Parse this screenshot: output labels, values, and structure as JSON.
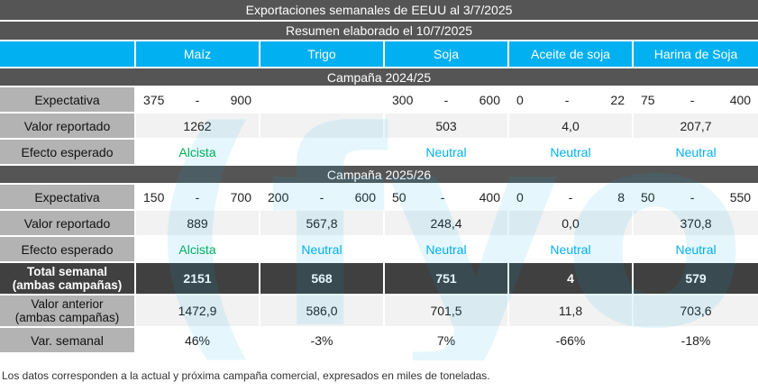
{
  "title": "Exportaciones semanales de EEUU al 3/7/2025",
  "subtitle": "Resumen elaborado el 10/7/2025",
  "columns": [
    "Maíz",
    "Trigo",
    "Soja",
    "Aceite de soja",
    "Harina de Soja"
  ],
  "campaign1": {
    "label": "Campaña 2024/25",
    "rows": {
      "expectativa_label": "Expectativa",
      "reportado_label": "Valor reportado",
      "efecto_label": "Efecto esperado"
    },
    "expectativa": [
      {
        "lo": "375",
        "sep": "-",
        "hi": "900"
      },
      {
        "lo": "",
        "sep": "",
        "hi": ""
      },
      {
        "lo": "300",
        "sep": "-",
        "hi": "600"
      },
      {
        "lo": "0",
        "sep": "-",
        "hi": "22"
      },
      {
        "lo": "75",
        "sep": "-",
        "hi": "400"
      }
    ],
    "reportado": [
      "1262",
      "",
      "503",
      "4,0",
      "207,7"
    ],
    "efecto": [
      "Alcista",
      "",
      "Neutral",
      "Neutral",
      "Neutral"
    ]
  },
  "campaign2": {
    "label": "Campaña 2025/26",
    "rows": {
      "expectativa_label": "Expectativa",
      "reportado_label": "Valor reportado",
      "efecto_label": "Efecto esperado"
    },
    "expectativa": [
      {
        "lo": "150",
        "sep": "-",
        "hi": "700"
      },
      {
        "lo": "200",
        "sep": "-",
        "hi": "600"
      },
      {
        "lo": "50",
        "sep": "-",
        "hi": "400"
      },
      {
        "lo": "0",
        "sep": "-",
        "hi": "8"
      },
      {
        "lo": "50",
        "sep": "-",
        "hi": "550"
      }
    ],
    "reportado": [
      "889",
      "567,8",
      "248,4",
      "0,0",
      "370,8"
    ],
    "efecto": [
      "Alcista",
      "Neutral",
      "Neutral",
      "Neutral",
      "Neutral"
    ]
  },
  "total": {
    "label_line1": "Total semanal",
    "label_line2": "(ambas campañas)",
    "values": [
      "2151",
      "568",
      "751",
      "4",
      "579"
    ]
  },
  "anterior": {
    "label_line1": "Valor anterior",
    "label_line2": "(ambas campañas)",
    "values": [
      "1472,9",
      "586,0",
      "701,5",
      "11,8",
      "703,6"
    ]
  },
  "variacion": {
    "label": "Var. semanal",
    "values": [
      "46%",
      "-3%",
      "7%",
      "-66%",
      "-18%"
    ]
  },
  "footnote": "Los datos corresponden a la actual y próxima campaña comercial, expresados en miles de toneladas.",
  "colors": {
    "header_blue": "#00b0f0",
    "dark_gray": "#555555",
    "alcista_green": "#00b050",
    "neutral_blue": "#00b0f0"
  }
}
